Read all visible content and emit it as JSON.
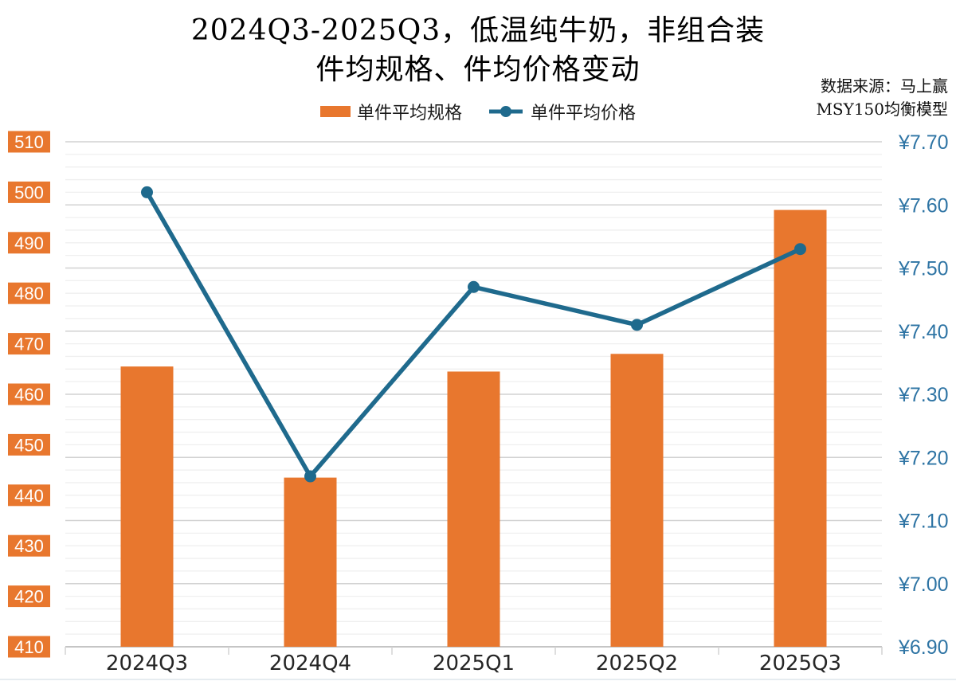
{
  "chart_data": {
    "type": "combo",
    "title_lines": [
      "2024Q3-2025Q3，低温纯牛奶，非组合装",
      "件均规格、件均价格变动"
    ],
    "source_note": [
      "数据来源：马上赢",
      "MSY150均衡模型"
    ],
    "legend": [
      {
        "label": "单件平均规格",
        "type": "bar"
      },
      {
        "label": "单件平均价格",
        "type": "line"
      }
    ],
    "categories": [
      "2024Q3",
      "2024Q4",
      "2025Q1",
      "2025Q2",
      "2025Q3"
    ],
    "series": [
      {
        "name": "单件平均规格",
        "type": "bar",
        "axis": "left",
        "color": "#E8772E",
        "values": [
          465.5,
          443.5,
          464.5,
          468,
          496.5
        ]
      },
      {
        "name": "单件平均价格",
        "type": "line",
        "axis": "right",
        "color": "#1F6A8D",
        "values": [
          7.62,
          7.17,
          7.47,
          7.41,
          7.53
        ]
      }
    ],
    "left_axis": {
      "min": 410,
      "max": 510,
      "step": 10,
      "ticks": [
        "510",
        "500",
        "490",
        "480",
        "470",
        "460",
        "450",
        "440",
        "430",
        "420",
        "410"
      ],
      "label_bg": "#E8772E",
      "label_color": "#ffffff"
    },
    "right_axis": {
      "min": 6.9,
      "max": 7.7,
      "step": 0.1,
      "minor_step": 0.02,
      "ticks": [
        "¥7.70",
        "¥7.60",
        "¥7.50",
        "¥7.40",
        "¥7.30",
        "¥7.20",
        "¥7.10",
        "¥7.00",
        "¥6.90"
      ],
      "label_color": "#2E74A4"
    },
    "grid": {
      "minor_color": "#efefef",
      "major_color": "#d2d2d2",
      "axis_color": "#bdbdbd"
    },
    "x_label_color": "#262626"
  }
}
